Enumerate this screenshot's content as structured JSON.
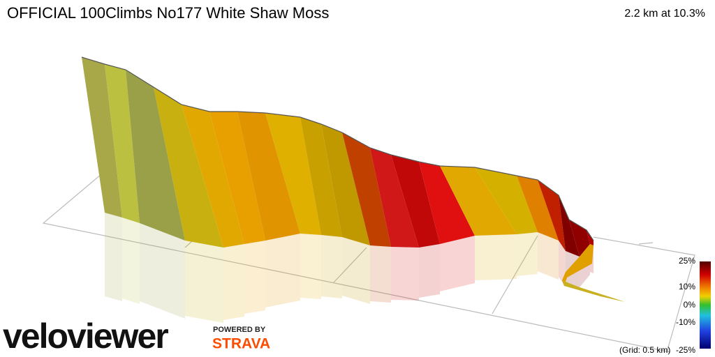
{
  "header": {
    "title": "OFFICIAL 100Climbs No177 White Shaw Moss",
    "summary": "2.2 km at 10.3%"
  },
  "legend": {
    "labels": [
      "25%",
      "10%",
      "0%",
      "-10%",
      "-25%"
    ],
    "grid_note": "(Grid: 0.5 km)"
  },
  "branding": {
    "logo": "veloviewer",
    "powered_by": "POWERED BY",
    "partner": "STRAVA"
  }
}
